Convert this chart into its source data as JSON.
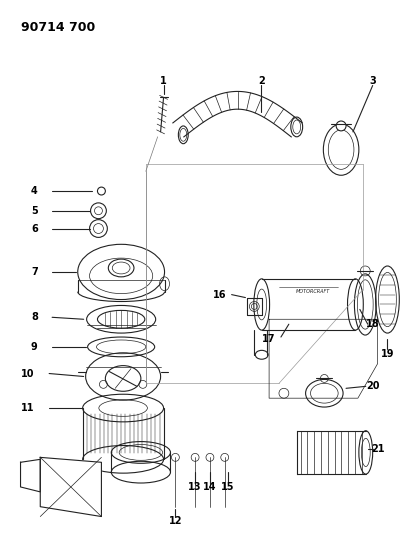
{
  "title": "90714 700",
  "bg": "#ffffff",
  "lc": "#222222",
  "figsize": [
    4.08,
    5.33
  ],
  "dpi": 100
}
